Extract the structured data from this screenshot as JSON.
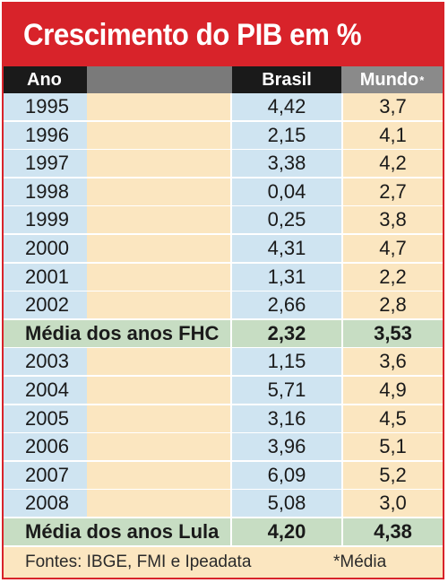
{
  "title": "Crescimento do PIB em %",
  "header": {
    "year": "Ano",
    "brasil": "Brasil",
    "mundo": "Mundo",
    "mundo_mark": "*"
  },
  "chart_data": {
    "type": "table",
    "title": "Crescimento do PIB em %",
    "columns": [
      "Ano",
      "Brasil",
      "Mundo*"
    ],
    "rows": [
      {
        "label": "1995",
        "brasil": "4,42",
        "mundo": "3,7"
      },
      {
        "label": "1996",
        "brasil": "2,15",
        "mundo": "4,1"
      },
      {
        "label": "1997",
        "brasil": "3,38",
        "mundo": "4,2"
      },
      {
        "label": "1998",
        "brasil": "0,04",
        "mundo": "2,7"
      },
      {
        "label": "1999",
        "brasil": "0,25",
        "mundo": "3,8"
      },
      {
        "label": "2000",
        "brasil": "4,31",
        "mundo": "4,7"
      },
      {
        "label": "2001",
        "brasil": "1,31",
        "mundo": "2,2"
      },
      {
        "label": "2002",
        "brasil": "2,66",
        "mundo": "2,8"
      },
      {
        "label": "Média dos anos FHC",
        "brasil": "2,32",
        "mundo": "3,53",
        "average": true
      },
      {
        "label": "2003",
        "brasil": "1,15",
        "mundo": "3,6"
      },
      {
        "label": "2004",
        "brasil": "5,71",
        "mundo": "4,9"
      },
      {
        "label": "2005",
        "brasil": "3,16",
        "mundo": "4,5"
      },
      {
        "label": "2006",
        "brasil": "3,96",
        "mundo": "5,1"
      },
      {
        "label": "2007",
        "brasil": "6,09",
        "mundo": "5,2"
      },
      {
        "label": "2008",
        "brasil": "5,08",
        "mundo": "3,0"
      },
      {
        "label": "Média dos anos Lula",
        "brasil": "4,20",
        "mundo": "4,38",
        "average": true
      }
    ]
  },
  "footer": {
    "sources": "Fontes: IBGE, FMI e Ipeadata",
    "note": "*Média"
  },
  "colors": {
    "title_bg": "#d8232a",
    "header_dark": "#1a1a1a",
    "header_gray": "#8a8a8a",
    "blue_cell": "#cfe4f1",
    "cream_cell": "#fbe6c0",
    "green_avg": "#c7ddc3"
  }
}
